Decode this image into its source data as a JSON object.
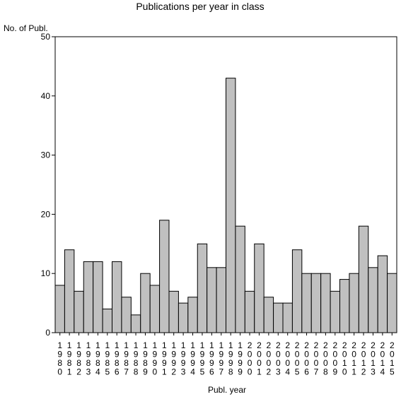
{
  "chart_data": {
    "type": "bar",
    "title": "Publications per year in class",
    "ylabel": "No. of Publ.",
    "xlabel": "Publ. year",
    "ylim": [
      0,
      50
    ],
    "yticks": [
      0,
      10,
      20,
      30,
      40,
      50
    ],
    "grid": false,
    "legend": "none",
    "bar_color": "#c0c0c0",
    "edge_color": "#000000",
    "categories": [
      "1980",
      "1981",
      "1982",
      "1983",
      "1984",
      "1985",
      "1986",
      "1987",
      "1988",
      "1989",
      "1990",
      "1991",
      "1992",
      "1993",
      "1994",
      "1995",
      "1996",
      "1997",
      "1998",
      "1999",
      "2000",
      "2001",
      "2002",
      "2003",
      "2004",
      "2005",
      "2006",
      "2007",
      "2008",
      "2009",
      "2010",
      "2011",
      "2012",
      "2013",
      "2014",
      "2015"
    ],
    "values": [
      8,
      14,
      7,
      12,
      12,
      4,
      12,
      6,
      3,
      10,
      8,
      19,
      7,
      5,
      6,
      15,
      11,
      11,
      43,
      18,
      7,
      15,
      6,
      5,
      5,
      14,
      10,
      10,
      10,
      7,
      9,
      10,
      18,
      11,
      13,
      10
    ]
  }
}
